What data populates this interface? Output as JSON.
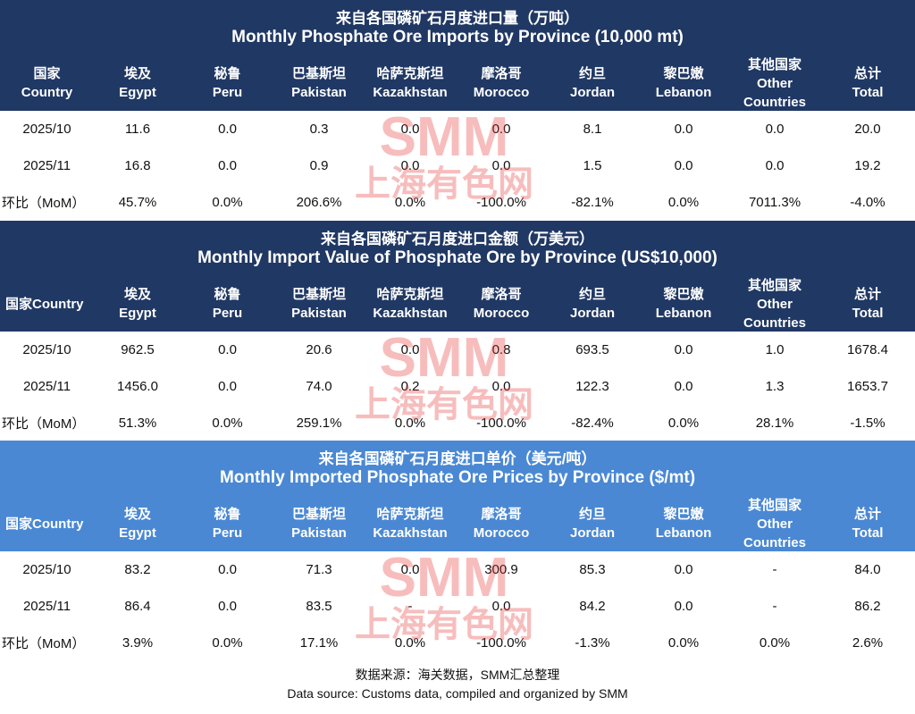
{
  "tables": [
    {
      "title_zh": "来自各国磷矿石月度进口量（万吨）",
      "title_en": "Monthly Phosphate Ore Imports by Province (10,000 mt)",
      "header": [
        [
          "国家",
          "Country"
        ],
        [
          "埃及",
          "Egypt"
        ],
        [
          "秘鲁",
          "Peru"
        ],
        [
          "巴基斯坦",
          "Pakistan"
        ],
        [
          "哈萨克斯坦",
          "Kazakhstan"
        ],
        [
          "摩洛哥",
          "Morocco"
        ],
        [
          "约旦",
          "Jordan"
        ],
        [
          "黎巴嫩",
          "Lebanon"
        ],
        [
          "其他国家",
          "Other",
          "Countries"
        ],
        [
          "总计",
          "Total"
        ]
      ],
      "rows": [
        [
          "2025/10",
          "11.6",
          "0.0",
          "0.3",
          "0.0",
          "0.0",
          "8.1",
          "0.0",
          "0.0",
          "20.0"
        ],
        [
          "2025/11",
          "16.8",
          "0.0",
          "0.9",
          "0.0",
          "0.0",
          "1.5",
          "0.0",
          "0.0",
          "19.2"
        ],
        [
          "环比（MoM）",
          "45.7%",
          "0.0%",
          "206.6%",
          "0.0%",
          "-100.0%",
          "-82.1%",
          "0.0%",
          "7011.3%",
          "-4.0%"
        ]
      ]
    },
    {
      "title_zh": "来自各国磷矿石月度进口金额（万美元）",
      "title_en": "Monthly Import Value of Phosphate Ore by Province (US$10,000)",
      "header": [
        [
          "国家Country"
        ],
        [
          "埃及",
          "Egypt"
        ],
        [
          "秘鲁",
          "Peru"
        ],
        [
          "巴基斯坦",
          "Pakistan"
        ],
        [
          "哈萨克斯坦",
          "Kazakhstan"
        ],
        [
          "摩洛哥",
          "Morocco"
        ],
        [
          "约旦",
          "Jordan"
        ],
        [
          "黎巴嫩",
          "Lebanon"
        ],
        [
          "其他国家",
          "Other",
          "Countries"
        ],
        [
          "总计",
          "Total"
        ]
      ],
      "rows": [
        [
          "2025/10",
          "962.5",
          "0.0",
          "20.6",
          "0.0",
          "0.8",
          "693.5",
          "0.0",
          "1.0",
          "1678.4"
        ],
        [
          "2025/11",
          "1456.0",
          "0.0",
          "74.0",
          "0.2",
          "0.0",
          "122.3",
          "0.0",
          "1.3",
          "1653.7"
        ],
        [
          "环比（MoM）",
          "51.3%",
          "0.0%",
          "259.1%",
          "0.0%",
          "-100.0%",
          "-82.4%",
          "0.0%",
          "28.1%",
          "-1.5%"
        ]
      ]
    },
    {
      "title_zh": "来自各国磷矿石月度进口单价（美元/吨）",
      "title_en": "Monthly Imported Phosphate Ore Prices by Province ($/mt)",
      "header": [
        [
          "国家Country"
        ],
        [
          "埃及",
          "Egypt"
        ],
        [
          "秘鲁",
          "Peru"
        ],
        [
          "巴基斯坦",
          "Pakistan"
        ],
        [
          "哈萨克斯坦",
          "Kazakhstan"
        ],
        [
          "摩洛哥",
          "Morocco"
        ],
        [
          "约旦",
          "Jordan"
        ],
        [
          "黎巴嫩",
          "Lebanon"
        ],
        [
          "其他国家",
          "Other",
          "Countries"
        ],
        [
          "总计",
          "Total"
        ]
      ],
      "rows": [
        [
          "2025/10",
          "83.2",
          "0.0",
          "71.3",
          "0.0",
          "300.9",
          "85.3",
          "0.0",
          "-",
          "84.0"
        ],
        [
          "2025/11",
          "86.4",
          "0.0",
          "83.5",
          "-",
          "0.0",
          "84.2",
          "0.0",
          "-",
          "86.2"
        ],
        [
          "环比（MoM）",
          "3.9%",
          "0.0%",
          "17.1%",
          "0.0%",
          "-100.0%",
          "-1.3%",
          "0.0%",
          "0.0%",
          "2.6%"
        ]
      ]
    }
  ],
  "watermark": [
    "SMM",
    "上海有色网"
  ],
  "source": {
    "zh": "数据来源：海关数据，SMM汇总整理",
    "en": "Data source: Customs data, compiled and organized by SMM"
  }
}
